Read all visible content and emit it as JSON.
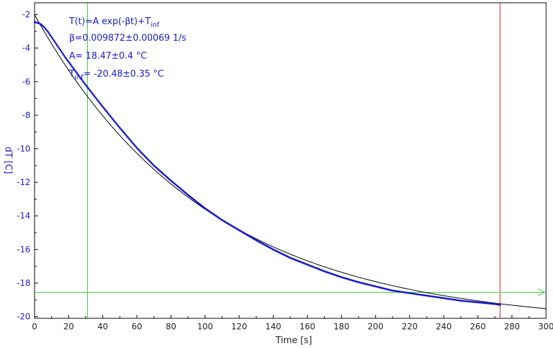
{
  "chart_data": {
    "type": "scatter",
    "title": "",
    "xlabel": "Time [s]",
    "ylabel": "dT [C]",
    "xlim": [
      0,
      300
    ],
    "ylim": [
      -20.1,
      -1.3
    ],
    "x_ticks": [
      0,
      20,
      40,
      60,
      80,
      100,
      120,
      140,
      160,
      180,
      200,
      220,
      240,
      260,
      280,
      300
    ],
    "y_ticks": [
      -2,
      -4,
      -6,
      -8,
      -10,
      -12,
      -14,
      -16,
      -18,
      -20
    ],
    "grid": false,
    "annotations": {
      "formula_main": "T(t)=A exp(-βt)+T",
      "formula_sub": "inf",
      "beta": "β=0.009872±0.00069 1/s",
      "amp": "A= 18.47±0.4 °C",
      "tinf_main": "T",
      "tinf_sub": "inf",
      "tinf_rest": "= -20.48±0.35 °C"
    },
    "fit": {
      "A": 18.47,
      "beta": 0.009872,
      "Tinf": -20.48,
      "x_range": [
        0,
        300
      ]
    },
    "cursors": {
      "vertical_green_x": 31,
      "vertical_red_x": 273,
      "horizontal_green_y": -18.55
    },
    "series": [
      {
        "values_x": [
          0,
          2,
          4,
          6,
          8,
          10,
          14,
          18,
          22,
          26,
          30,
          35,
          40,
          50,
          60,
          70,
          80,
          90,
          100,
          110,
          120,
          130,
          140,
          150,
          160,
          170,
          180,
          190,
          200,
          210,
          220,
          230,
          240,
          250,
          260,
          270,
          273
        ],
        "values_y": [
          -2.45,
          -2.5,
          -2.6,
          -2.8,
          -3.05,
          -3.35,
          -3.95,
          -4.55,
          -5.1,
          -5.65,
          -6.2,
          -6.85,
          -7.5,
          -8.75,
          -9.95,
          -11.0,
          -11.9,
          -12.75,
          -13.55,
          -14.25,
          -14.85,
          -15.45,
          -16.0,
          -16.5,
          -16.9,
          -17.3,
          -17.65,
          -17.95,
          -18.2,
          -18.45,
          -18.6,
          -18.75,
          -18.9,
          -19.05,
          -19.15,
          -19.25,
          -19.3
        ]
      }
    ],
    "colors": {
      "data": "#1a1acc",
      "fit": "#000000",
      "green": "#33cc33",
      "red": "#dd2222",
      "axis_text": "#1a1acc"
    }
  }
}
